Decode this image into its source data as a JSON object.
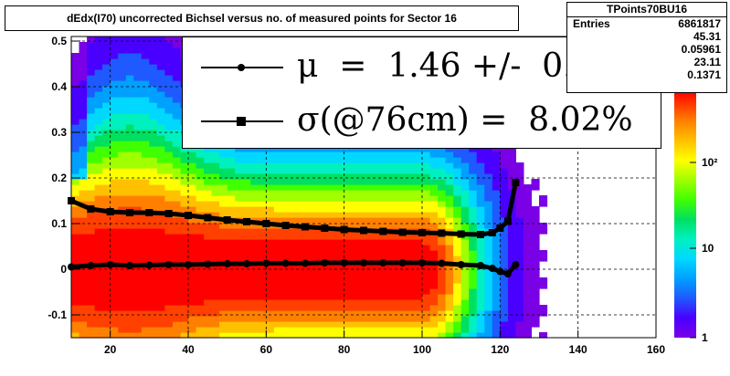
{
  "title": "dEdx(I70) uncorrected Bichsel versus no. of measured points for Sector 16",
  "stats": {
    "name": "TPoints70BU16",
    "rows": [
      {
        "key": "Entries",
        "value": "6861817"
      },
      {
        "key": "",
        "value": "45.31"
      },
      {
        "key": "",
        "value": "0.05961"
      },
      {
        "key": "",
        "value": "23.11"
      },
      {
        "key": "",
        "value": "0.1371"
      }
    ]
  },
  "legend": [
    {
      "text": "μ  =  1.46 +/-  0.01 %",
      "marker": "circle"
    },
    {
      "text": "σ(@76cm) =  8.02%",
      "marker": "square"
    }
  ],
  "colors": {
    "scale": [
      "#7a00e6",
      "#4a00ff",
      "#1e5aff",
      "#00a0ff",
      "#00d8ff",
      "#00f0c0",
      "#00e060",
      "#40ff00",
      "#a0ff00",
      "#ffff00",
      "#ffc000",
      "#ff8000",
      "#ff4000",
      "#ff0000"
    ]
  },
  "chart_data": {
    "type": "heatmap",
    "x_range": [
      10,
      160
    ],
    "y_range": [
      -0.15,
      0.51
    ],
    "x_ticks": [
      20,
      40,
      60,
      80,
      100,
      120,
      140,
      160
    ],
    "y_ticks": [
      -0.1,
      0,
      0.1,
      0.2,
      0.3,
      0.4,
      0.5
    ],
    "z_scale": "log",
    "z_ticks": [
      "1",
      "10",
      "10²"
    ],
    "series": [
      {
        "marker": "circle",
        "x": [
          10,
          15,
          20,
          25,
          30,
          35,
          40,
          45,
          50,
          55,
          60,
          65,
          70,
          75,
          80,
          85,
          90,
          95,
          100,
          105,
          110,
          115,
          118,
          120,
          122,
          124
        ],
        "y": [
          0.005,
          0.008,
          0.01,
          0.008,
          0.009,
          0.01,
          0.01,
          0.011,
          0.012,
          0.012,
          0.013,
          0.013,
          0.013,
          0.014,
          0.014,
          0.014,
          0.014,
          0.014,
          0.014,
          0.013,
          0.01,
          0.008,
          0.002,
          -0.005,
          -0.01,
          0.01
        ]
      },
      {
        "marker": "square",
        "x": [
          10,
          15,
          20,
          25,
          30,
          35,
          40,
          45,
          50,
          55,
          60,
          65,
          70,
          75,
          80,
          85,
          90,
          95,
          100,
          105,
          110,
          115,
          118,
          120,
          122,
          124
        ],
        "y": [
          0.15,
          0.132,
          0.126,
          0.124,
          0.124,
          0.122,
          0.118,
          0.113,
          0.108,
          0.104,
          0.1,
          0.096,
          0.093,
          0.09,
          0.087,
          0.085,
          0.083,
          0.081,
          0.08,
          0.079,
          0.077,
          0.076,
          0.08,
          0.09,
          0.105,
          0.19
        ]
      }
    ]
  }
}
